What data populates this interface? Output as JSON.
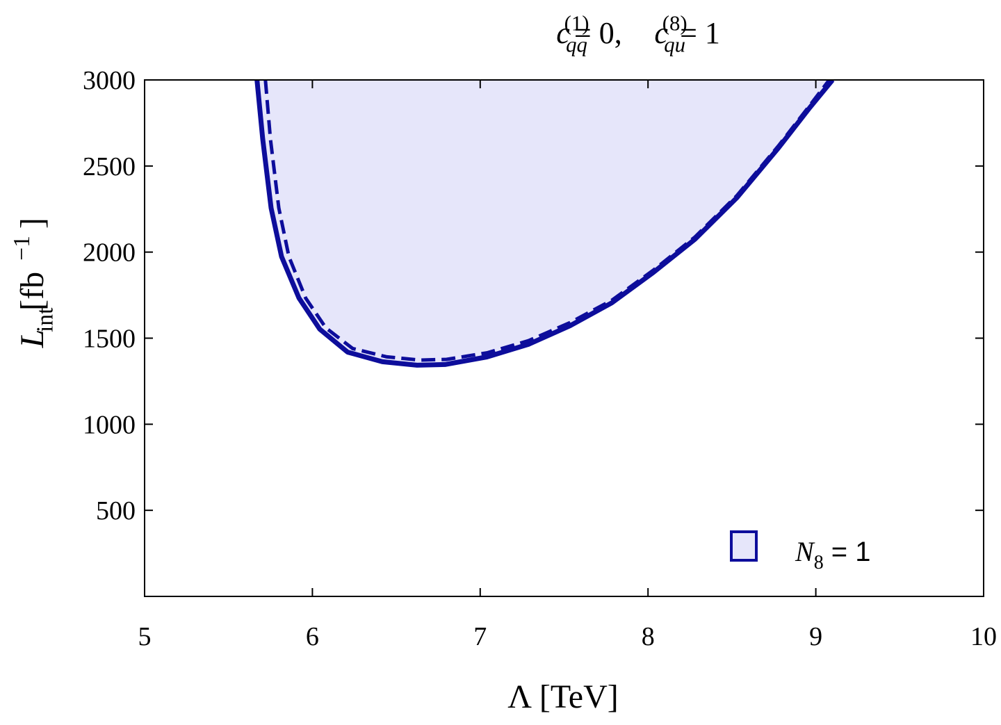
{
  "chart_data": {
    "type": "line",
    "title": [
      {
        "text": "c",
        "italic": true
      },
      {
        "sup": "(1)",
        "sub": "qq",
        "italic": true
      },
      {
        "text": " = 0, "
      },
      {
        "text": "c",
        "italic": true
      },
      {
        "sup": "(8)",
        "sub": "qu",
        "italic": true
      },
      {
        "text": " = 1"
      }
    ],
    "xlabel": [
      {
        "text": "Λ [TeV]"
      }
    ],
    "ylabel": [
      {
        "text": "L",
        "italic": true
      },
      {
        "sub": "int"
      },
      {
        "text": "  [fb"
      },
      {
        "sup": "−1"
      },
      {
        "text": "]"
      }
    ],
    "xlim": [
      5,
      10
    ],
    "ylim": [
      0,
      3000
    ],
    "xticks": [
      5,
      6,
      7,
      8,
      9,
      10
    ],
    "yticks": [
      500,
      1000,
      1500,
      2000,
      2500,
      3000
    ],
    "legend_position": "lower right",
    "fill_color": "#e6e6fa",
    "series": [
      {
        "name": [
          {
            "text": "N",
            "italic": true
          },
          {
            "sub": "8"
          },
          {
            "text": " = 1",
            "sans": true
          }
        ],
        "color": "#0d0d9b",
        "dash": false,
        "x": [
          5.67,
          5.704,
          5.754,
          5.816,
          5.92,
          6.044,
          6.21,
          6.417,
          6.624,
          6.79,
          7.04,
          7.287,
          7.535,
          7.784,
          8.032,
          8.28,
          8.53,
          8.778,
          8.964,
          9.1
        ],
        "values": [
          3000,
          2658,
          2256,
          1974,
          1733,
          1552,
          1419,
          1363,
          1343,
          1347,
          1391,
          1464,
          1572,
          1705,
          1882,
          2075,
          2316,
          2606,
          2839,
          3000
        ]
      },
      {
        "color": "#0d0d9b",
        "dash": true,
        "x": [
          5.72,
          5.75,
          5.8,
          5.86,
          5.96,
          6.08,
          6.24,
          6.44,
          6.64,
          6.8,
          7.04,
          7.287,
          7.535,
          7.784,
          8.032,
          8.28,
          8.53,
          8.778,
          8.964,
          9.08
        ],
        "values": [
          3000,
          2658,
          2256,
          1974,
          1733,
          1560,
          1440,
          1392,
          1373,
          1377,
          1415,
          1485,
          1590,
          1720,
          1895,
          2088,
          2328,
          2618,
          2852,
          3000
        ]
      }
    ]
  }
}
